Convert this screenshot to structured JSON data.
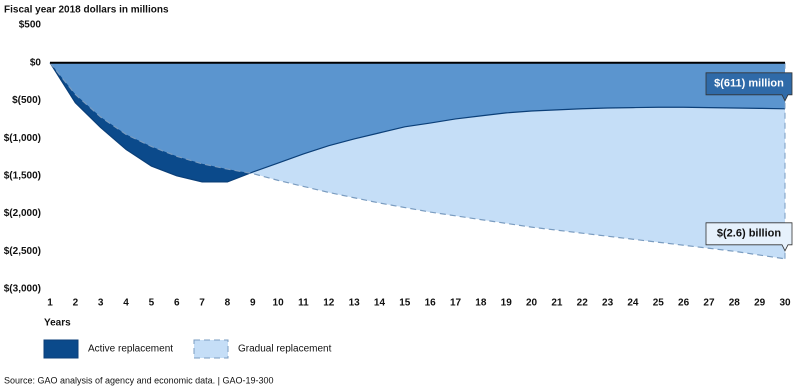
{
  "chart_data": {
    "type": "area",
    "title": "Fiscal year 2018 dollars in millions",
    "x_label": "Years",
    "source": "Source: GAO analysis of agency and economic data.  |  GAO-19-300",
    "x": [
      1,
      2,
      3,
      4,
      5,
      6,
      7,
      8,
      9,
      10,
      11,
      12,
      13,
      14,
      15,
      16,
      17,
      18,
      19,
      20,
      21,
      22,
      23,
      24,
      25,
      26,
      27,
      28,
      29,
      30
    ],
    "xlim": [
      1,
      30
    ],
    "xticks": [
      1,
      2,
      3,
      4,
      5,
      6,
      7,
      8,
      9,
      10,
      11,
      12,
      13,
      14,
      15,
      16,
      17,
      18,
      19,
      20,
      21,
      22,
      23,
      24,
      25,
      26,
      27,
      28,
      29,
      30
    ],
    "ylim": [
      -3000,
      500
    ],
    "yticks": [
      {
        "value": 500,
        "label": "$500"
      },
      {
        "value": 0,
        "label": "$0"
      },
      {
        "value": -500,
        "label": "$(500)"
      },
      {
        "value": -1000,
        "label": "$(1,000)"
      },
      {
        "value": -1500,
        "label": "$(1,500)"
      },
      {
        "value": -2000,
        "label": "$(2,000)"
      },
      {
        "value": -2500,
        "label": "$(2,500)"
      },
      {
        "value": -3000,
        "label": "$(3,000)"
      }
    ],
    "overlap_color": "#5b95cf",
    "series": [
      {
        "name": "Active replacement",
        "color": "#0b4a8b",
        "line_style": "solid",
        "values": [
          0,
          -530,
          -860,
          -1150,
          -1370,
          -1500,
          -1580,
          -1580,
          -1450,
          -1330,
          -1210,
          -1100,
          -1010,
          -930,
          -850,
          -800,
          -745,
          -705,
          -665,
          -640,
          -625,
          -610,
          -600,
          -595,
          -590,
          -590,
          -595,
          -600,
          -605,
          -611
        ],
        "end_label": "$(611) million"
      },
      {
        "name": "Gradual replacement",
        "color": "#c5def7",
        "line_style": "dashed",
        "values": [
          0,
          -420,
          -720,
          -950,
          -1110,
          -1240,
          -1340,
          -1410,
          -1470,
          -1560,
          -1640,
          -1720,
          -1790,
          -1860,
          -1920,
          -1980,
          -2030,
          -2080,
          -2130,
          -2180,
          -2220,
          -2260,
          -2300,
          -2340,
          -2380,
          -2420,
          -2460,
          -2500,
          -2550,
          -2600
        ],
        "end_label": "$(2.6) billion"
      }
    ]
  }
}
